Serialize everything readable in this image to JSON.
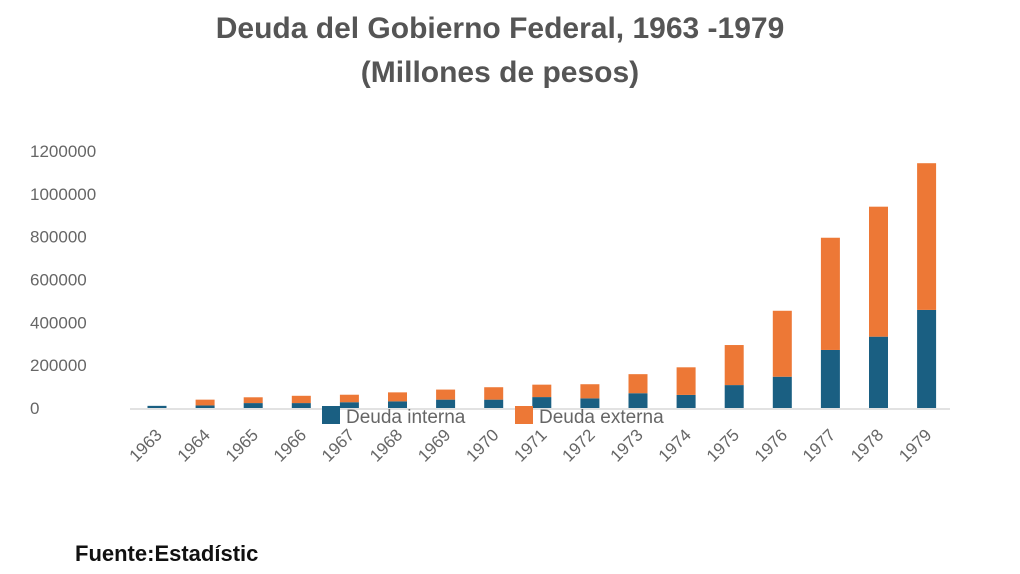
{
  "chart_data": {
    "type": "bar",
    "stacked": true,
    "title": "Deuda del Gobierno Federal, 1963 -1979",
    "subtitle": "(Millones de pesos)",
    "xlabel": "",
    "ylabel": "",
    "ylim": [
      0,
      1200000
    ],
    "yticks": [
      0,
      200000,
      400000,
      600000,
      800000,
      1000000,
      1200000
    ],
    "ytick_labels": [
      "0",
      "200000",
      "400000",
      "600000",
      "800000",
      "1000000",
      "1200000"
    ],
    "categories": [
      "1963",
      "1964",
      "1965",
      "1966",
      "1967",
      "1968",
      "1969",
      "1970",
      "1971",
      "1972",
      "1973",
      "1974",
      "1975",
      "1976",
      "1977",
      "1978",
      "1979"
    ],
    "series": [
      {
        "name": "Deuda interna",
        "color": "#1a5f82",
        "values": [
          10000,
          12000,
          23000,
          23000,
          27000,
          31000,
          39000,
          39000,
          51000,
          45000,
          69000,
          61000,
          107000,
          146000,
          271000,
          333000,
          458000
        ]
      },
      {
        "name": "Deuda externa",
        "color": "#ed7836",
        "values": [
          0,
          27000,
          27000,
          34000,
          35000,
          42000,
          47000,
          58000,
          58000,
          66000,
          89000,
          129000,
          187000,
          308000,
          524000,
          607000,
          685000
        ]
      }
    ],
    "grid": false,
    "legend": "bottom (overlapping x-axis)"
  },
  "source": "Fuente:Estadístic"
}
